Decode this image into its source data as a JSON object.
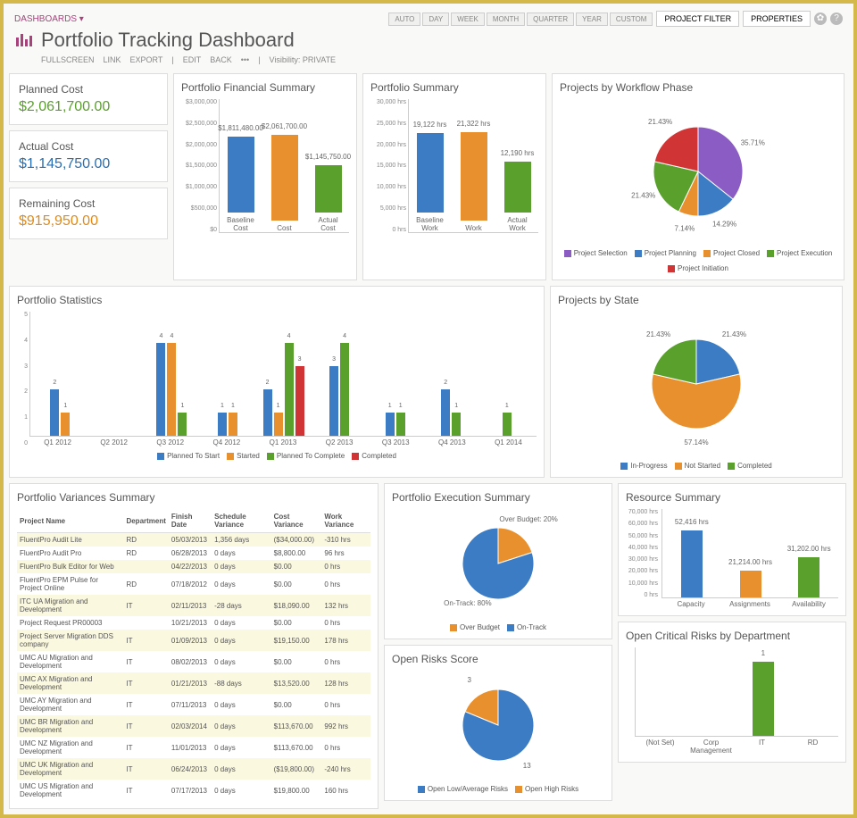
{
  "breadcrumb": "DASHBOARDS ▾",
  "title": "Portfolio Tracking Dashboard",
  "sublinks": [
    "FULLSCREEN",
    "LINK",
    "EXPORT",
    "|",
    "EDIT",
    "BACK",
    "•••",
    "|"
  ],
  "visibility_label": "Visibility:",
  "visibility_value": "PRIVATE",
  "periods": [
    "AUTO",
    "DAY",
    "WEEK",
    "MONTH",
    "QUARTER",
    "YEAR",
    "CUSTOM"
  ],
  "btn_filter": "PROJECT FILTER",
  "btn_properties": "PROPERTIES",
  "kpis": [
    {
      "label": "Planned Cost",
      "value": "$2,061,700.00",
      "color": "#5aa02c"
    },
    {
      "label": "Actual Cost",
      "value": "$1,145,750.00",
      "color": "#2a6fb0"
    },
    {
      "label": "Remaining Cost",
      "value": "$915,950.00",
      "color": "#e08b1a"
    }
  ],
  "fin_summary": {
    "title": "Portfolio Financial Summary",
    "ymax": 3000000,
    "yticks": [
      "$3,000,000",
      "$2,500,000",
      "$2,000,000",
      "$1,500,000",
      "$1,000,000",
      "$500,000",
      "$0"
    ],
    "bars": [
      {
        "label": "Baseline Cost",
        "value": 1811480,
        "text": "$1,811,480.00",
        "color": "#3b7cc4"
      },
      {
        "label": "Cost",
        "value": 2061700,
        "text": "$2,061,700.00",
        "color": "#e8902e"
      },
      {
        "label": "Actual Cost",
        "value": 1145750,
        "text": "$1,145,750.00",
        "color": "#5aa02c"
      }
    ]
  },
  "port_summary": {
    "title": "Portfolio Summary",
    "ymax": 30000,
    "yticks": [
      "30,000 hrs",
      "25,000 hrs",
      "20,000 hrs",
      "15,000 hrs",
      "10,000 hrs",
      "5,000 hrs",
      "0 hrs"
    ],
    "bars": [
      {
        "label": "Baseline Work",
        "value": 19122,
        "text": "19,122 hrs",
        "color": "#3b7cc4"
      },
      {
        "label": "Work",
        "value": 21322,
        "text": "21,322 hrs",
        "color": "#e8902e"
      },
      {
        "label": "Actual Work",
        "value": 12190,
        "text": "12,190 hrs",
        "color": "#5aa02c"
      }
    ]
  },
  "workflow": {
    "title": "Projects by Workflow Phase",
    "slices": [
      {
        "label": "Project Selection",
        "value": 35.71,
        "color": "#8b5cc4"
      },
      {
        "label": "Project Planning",
        "value": 14.29,
        "color": "#3b7cc4"
      },
      {
        "label": "Project Closed",
        "value": 7.14,
        "color": "#e8902e"
      },
      {
        "label": "Project Execution",
        "value": 21.43,
        "color": "#5aa02c"
      },
      {
        "label": "Project Initiation",
        "value": 21.43,
        "color": "#d13434"
      }
    ],
    "callouts": [
      "35.71%",
      "14.29%",
      "7.14%",
      "21.43%",
      "21.43%"
    ]
  },
  "stats": {
    "title": "Portfolio Statistics",
    "ymax": 5,
    "quarters": [
      "Q1 2012",
      "Q2 2012",
      "Q3 2012",
      "Q4 2012",
      "Q1 2013",
      "Q2 2013",
      "Q3 2013",
      "Q4 2013",
      "Q1 2014"
    ],
    "series_colors": {
      "planned": "#3b7cc4",
      "started": "#e8902e",
      "tocomplete": "#5aa02c",
      "completed": "#d13434"
    },
    "legend": [
      "Planned To Start",
      "Started",
      "Planned To Complete",
      "Completed"
    ],
    "data": [
      [
        {
          "v": 2,
          "c": "#3b7cc4"
        },
        {
          "v": 1,
          "c": "#e8902e"
        }
      ],
      [],
      [
        {
          "v": 4,
          "c": "#3b7cc4"
        },
        {
          "v": 4,
          "c": "#e8902e"
        },
        {
          "v": 1,
          "c": "#5aa02c"
        }
      ],
      [
        {
          "v": 1,
          "c": "#3b7cc4"
        },
        {
          "v": 1,
          "c": "#e8902e"
        }
      ],
      [
        {
          "v": 2,
          "c": "#3b7cc4"
        },
        {
          "v": 1,
          "c": "#e8902e"
        },
        {
          "v": 4,
          "c": "#5aa02c"
        },
        {
          "v": 3,
          "c": "#d13434"
        }
      ],
      [
        {
          "v": 3,
          "c": "#3b7cc4"
        },
        {
          "v": 4,
          "c": "#5aa02c"
        }
      ],
      [
        {
          "v": 1,
          "c": "#3b7cc4"
        },
        {
          "v": 1,
          "c": "#5aa02c"
        }
      ],
      [
        {
          "v": 2,
          "c": "#3b7cc4"
        },
        {
          "v": 1,
          "c": "#5aa02c"
        }
      ],
      [
        {
          "v": 1,
          "c": "#5aa02c"
        }
      ]
    ]
  },
  "state": {
    "title": "Projects by State",
    "slices": [
      {
        "label": "In-Progress",
        "value": 21.43,
        "color": "#3b7cc4"
      },
      {
        "label": "Not Started",
        "value": 57.14,
        "color": "#e8902e"
      },
      {
        "label": "Completed",
        "value": 21.43,
        "color": "#5aa02c"
      }
    ]
  },
  "variances": {
    "title": "Portfolio Variances Summary",
    "columns": [
      "Project Name",
      "Department",
      "Finish Date",
      "Schedule Variance",
      "Cost Variance",
      "Work Variance"
    ],
    "rows": [
      [
        "FluentPro Audit Lite",
        "RD",
        "05/03/2013",
        "1,356 days",
        "($34,000.00)",
        "-310 hrs"
      ],
      [
        "FluentPro Audit Pro",
        "RD",
        "06/28/2013",
        "0 days",
        "$8,800.00",
        "96 hrs"
      ],
      [
        "FluentPro Bulk Editor for Web",
        "",
        "04/22/2013",
        "0 days",
        "$0.00",
        "0 hrs"
      ],
      [
        "FluentPro EPM Pulse for Project Online",
        "RD",
        "07/18/2012",
        "0 days",
        "$0.00",
        "0 hrs"
      ],
      [
        "ITC UA Migration and Development",
        "IT",
        "02/11/2013",
        "-28 days",
        "$18,090.00",
        "132 hrs"
      ],
      [
        "Project Request PR00003",
        "",
        "10/21/2013",
        "0 days",
        "$0.00",
        "0 hrs"
      ],
      [
        "Project Server Migration DDS company",
        "IT",
        "01/09/2013",
        "0 days",
        "$19,150.00",
        "178 hrs"
      ],
      [
        "UMC AU Migration and Development",
        "IT",
        "08/02/2013",
        "0 days",
        "$0.00",
        "0 hrs"
      ],
      [
        "UMC AX Migration and Development",
        "IT",
        "01/21/2013",
        "-88 days",
        "$13,520.00",
        "128 hrs"
      ],
      [
        "UMC AY Migration and Development",
        "IT",
        "07/11/2013",
        "0 days",
        "$0.00",
        "0 hrs"
      ],
      [
        "UMC BR Migration and Development",
        "IT",
        "02/03/2014",
        "0 days",
        "$113,670.00",
        "992 hrs"
      ],
      [
        "UMC NZ Migration and Development",
        "IT",
        "11/01/2013",
        "0 days",
        "$113,670.00",
        "0 hrs"
      ],
      [
        "UMC UK Migration and Development",
        "IT",
        "06/24/2013",
        "0 days",
        "($19,800.00)",
        "-240 hrs"
      ],
      [
        "UMC US Migration and Development",
        "IT",
        "07/17/2013",
        "0 days",
        "$19,800.00",
        "160 hrs"
      ]
    ]
  },
  "execution": {
    "title": "Portfolio Execution Summary",
    "slices": [
      {
        "label": "Over Budget",
        "value": 20,
        "color": "#e8902e",
        "text": "Over Budget: 20%"
      },
      {
        "label": "On-Track",
        "value": 80,
        "color": "#3b7cc4",
        "text": "On-Track: 80%"
      }
    ]
  },
  "resource": {
    "title": "Resource Summary",
    "ymax": 70000,
    "yticks": [
      "70,000 hrs",
      "60,000 hrs",
      "50,000 hrs",
      "40,000 hrs",
      "30,000 hrs",
      "20,000 hrs",
      "10,000 hrs",
      "0 hrs"
    ],
    "bars": [
      {
        "label": "Capacity",
        "value": 52416,
        "text": "52,416 hrs",
        "color": "#3b7cc4"
      },
      {
        "label": "Assignments",
        "value": 21214,
        "text": "21,214.00 hrs",
        "color": "#e8902e"
      },
      {
        "label": "Availability",
        "value": 31202,
        "text": "31,202.00 hrs",
        "color": "#5aa02c"
      }
    ]
  },
  "risks_score": {
    "title": "Open Risks Score",
    "slices": [
      {
        "label": "Open Low/Average Risks",
        "value": 13,
        "color": "#3b7cc4",
        "text": "13"
      },
      {
        "label": "Open High Risks",
        "value": 3,
        "color": "#e8902e",
        "text": "3"
      }
    ]
  },
  "risks_dept": {
    "title": "Open Critical Risks by Department",
    "ymax": 1.2,
    "bars": [
      {
        "label": "(Not Set)",
        "value": 0,
        "color": "#3b7cc4"
      },
      {
        "label": "Corp Management",
        "value": 0,
        "color": "#e8902e"
      },
      {
        "label": "IT",
        "value": 1,
        "text": "1",
        "color": "#5aa02c"
      },
      {
        "label": "RD",
        "value": 0,
        "color": "#d13434"
      }
    ]
  }
}
